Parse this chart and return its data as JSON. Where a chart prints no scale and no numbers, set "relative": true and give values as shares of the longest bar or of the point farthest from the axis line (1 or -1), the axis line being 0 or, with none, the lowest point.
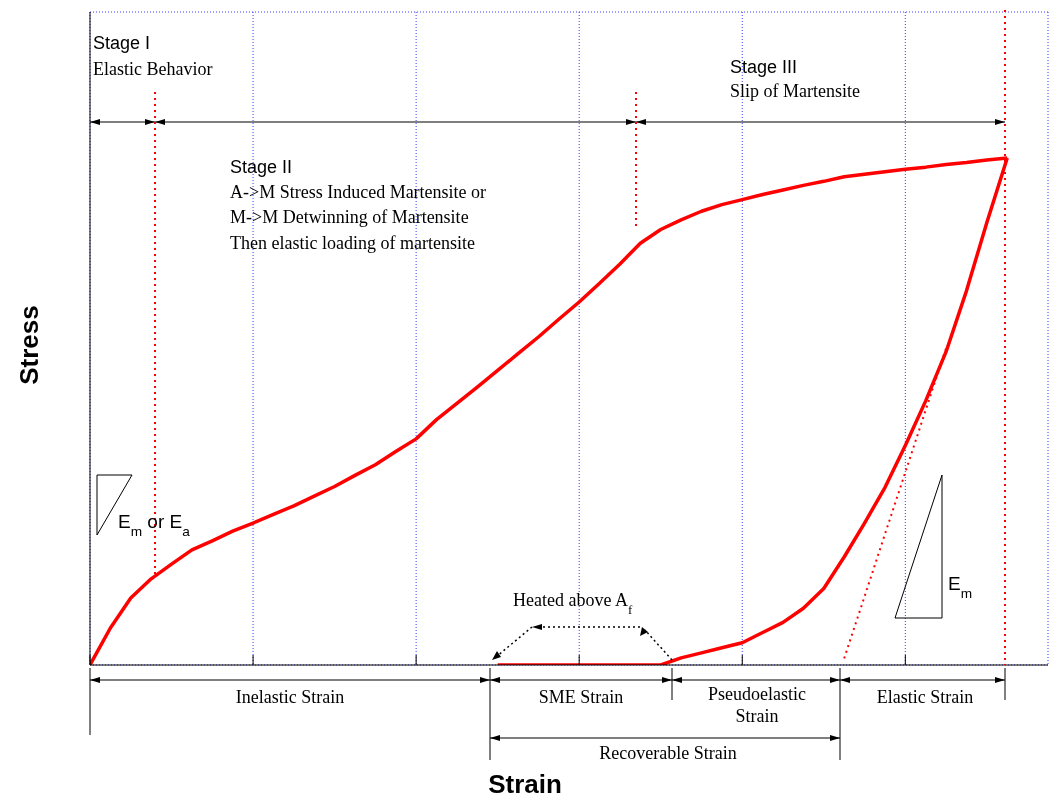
{
  "chart_data": {
    "type": "line",
    "xlabel": "Strain",
    "ylabel": "Stress",
    "relative": true,
    "grid": true,
    "marker": "none",
    "categories": [
      null,
      null,
      null,
      null,
      null,
      null,
      null,
      null,
      null,
      null,
      null,
      null,
      null,
      null,
      null,
      null,
      null,
      null,
      null,
      null,
      null,
      null,
      null,
      null,
      null,
      null,
      null,
      null,
      null,
      null,
      null,
      null,
      null,
      null,
      null,
      null,
      null,
      null,
      null,
      null,
      null,
      null,
      null,
      null,
      null,
      null,
      null,
      null
    ],
    "series": [
      {
        "color": "#ff0000",
        "values": [
          0,
          0.073,
          0.132,
          0.17,
          0.199,
          0.227,
          0.245,
          0.264,
          0.28,
          0.297,
          0.314,
          0.333,
          0.352,
          0.374,
          0.395,
          0.421,
          0.446,
          0.484,
          0.516,
          0.548,
          0.581,
          0.614,
          0.647,
          0.682,
          0.716,
          0.753,
          0.791,
          0.832,
          0.859,
          0.878,
          0.895,
          0.908,
          0.918,
          0.928,
          0.937,
          0.946,
          0.954,
          0.963,
          0.968,
          0.973,
          0.978,
          0.982,
          0.987,
          0.991,
          0.996,
          1,
          null,
          null
        ]
      },
      {
        "color": "#ff0000",
        "values": [
          null,
          null,
          null,
          null,
          null,
          null,
          null,
          null,
          null,
          null,
          null,
          null,
          null,
          null,
          null,
          null,
          null,
          null,
          null,
          null,
          0,
          0,
          0,
          0,
          0,
          0,
          0,
          0,
          0,
          0.014,
          0.024,
          0.034,
          0.044,
          0.064,
          0.084,
          0.112,
          0.151,
          0.213,
          0.28,
          0.35,
          0.433,
          0.521,
          0.618,
          0.738,
          0.873,
          1,
          null,
          null
        ]
      },
      {
        "color": "#ff0000",
        "line_style": "dotted",
        "values": [
          null,
          null,
          null,
          null,
          null,
          null,
          null,
          null,
          null,
          null,
          null,
          null,
          null,
          null,
          null,
          null,
          null,
          null,
          null,
          null,
          null,
          null,
          null,
          null,
          null,
          null,
          null,
          null,
          null,
          null,
          null,
          null,
          null,
          null,
          null,
          null,
          null,
          0.013,
          0.135,
          0.258,
          0.38,
          0.503,
          0.625,
          null,
          null,
          null,
          null,
          null
        ]
      }
    ],
    "annotations": [
      "Stage I",
      "Elastic Behavior",
      "Stage III",
      "Slip of Martensite",
      "Stage II",
      "A->M Stress Induced Martensite or",
      "M->M Detwinning of Martensite",
      "Then elastic loading of martensite",
      "E$_{m}$ or E$_{a}$",
      "Heated above A$_{f}$",
      "E$_{m}$",
      "Inelastic Strain",
      "SME Strain",
      "Pseudoelastic Strain",
      "Elastic Strain",
      "Recoverable Strain"
    ]
  }
}
